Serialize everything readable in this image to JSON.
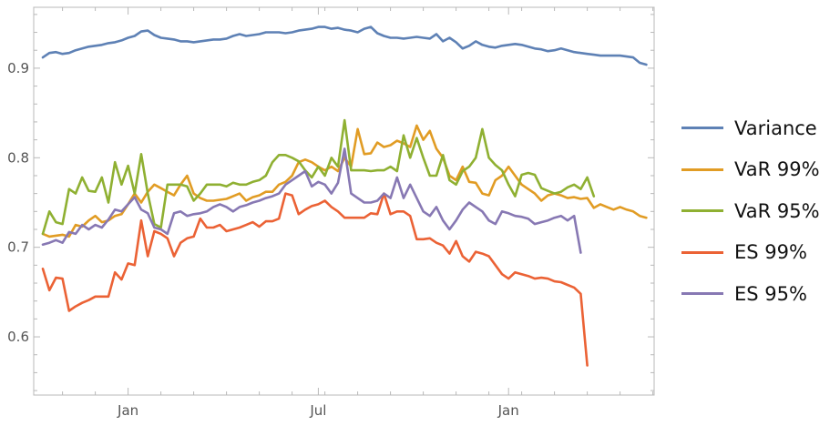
{
  "chart_data": {
    "type": "line",
    "title": "",
    "xlabel": "",
    "ylabel": "",
    "x_tick_labels": [
      "Jan",
      "Jul",
      "Jan"
    ],
    "y_ticks": [
      0.6,
      0.7,
      0.8,
      0.9
    ],
    "y_tick_labels": [
      "0.6",
      "0.7",
      "0.8",
      "0.9"
    ],
    "ylim": [
      0.535,
      0.968
    ],
    "grid": false,
    "legend_position": "right",
    "x_tick_index": [
      13,
      42,
      71
    ],
    "series": [
      {
        "name": "Variance",
        "color": "#5E81B5",
        "values": [
          0.912,
          0.917,
          0.918,
          0.916,
          0.917,
          0.92,
          0.922,
          0.924,
          0.925,
          0.926,
          0.928,
          0.929,
          0.931,
          0.934,
          0.936,
          0.941,
          0.942,
          0.937,
          0.934,
          0.933,
          0.932,
          0.93,
          0.93,
          0.929,
          0.93,
          0.931,
          0.932,
          0.932,
          0.933,
          0.936,
          0.938,
          0.936,
          0.937,
          0.938,
          0.94,
          0.94,
          0.94,
          0.939,
          0.94,
          0.942,
          0.943,
          0.944,
          0.946,
          0.946,
          0.944,
          0.945,
          0.943,
          0.942,
          0.94,
          0.944,
          0.946,
          0.939,
          0.936,
          0.934,
          0.934,
          0.933,
          0.934,
          0.935,
          0.934,
          0.933,
          0.938,
          0.93,
          0.934,
          0.929,
          0.922,
          0.925,
          0.93,
          0.926,
          0.924,
          0.923,
          0.925,
          0.926,
          0.927,
          0.926,
          0.924,
          0.922,
          0.921,
          0.919,
          0.92,
          0.922,
          0.92,
          0.918,
          0.917,
          0.916,
          0.915,
          0.914,
          0.914,
          0.914,
          0.914,
          0.913,
          0.912,
          0.906,
          0.904
        ]
      },
      {
        "name": "VaR 99%",
        "color": "#E19C24",
        "values": [
          0.715,
          0.712,
          0.713,
          0.714,
          0.712,
          0.725,
          0.723,
          0.73,
          0.735,
          0.728,
          0.73,
          0.735,
          0.737,
          0.748,
          0.76,
          0.75,
          0.762,
          0.77,
          0.766,
          0.762,
          0.758,
          0.77,
          0.78,
          0.76,
          0.755,
          0.752,
          0.752,
          0.753,
          0.754,
          0.757,
          0.76,
          0.752,
          0.756,
          0.758,
          0.762,
          0.762,
          0.77,
          0.773,
          0.78,
          0.795,
          0.798,
          0.795,
          0.79,
          0.786,
          0.79,
          0.785,
          0.8,
          0.79,
          0.832,
          0.804,
          0.805,
          0.817,
          0.812,
          0.814,
          0.819,
          0.816,
          0.812,
          0.836,
          0.82,
          0.83,
          0.81,
          0.8,
          0.78,
          0.775,
          0.79,
          0.773,
          0.772,
          0.76,
          0.758,
          0.775,
          0.78,
          0.79,
          0.78,
          0.77,
          0.765,
          0.76,
          0.752,
          0.758,
          0.76,
          0.758,
          0.755,
          0.756,
          0.754,
          0.755,
          0.744,
          0.748,
          0.745,
          0.742,
          0.745,
          0.742,
          0.74,
          0.735,
          0.733
        ]
      },
      {
        "name": "VaR 95%",
        "color": "#8FB032",
        "values": [
          0.715,
          0.74,
          0.728,
          0.726,
          0.765,
          0.76,
          0.778,
          0.763,
          0.762,
          0.778,
          0.75,
          0.795,
          0.77,
          0.791,
          0.76,
          0.804,
          0.76,
          0.726,
          0.722,
          0.77,
          0.77,
          0.77,
          0.768,
          0.752,
          0.76,
          0.77,
          0.77,
          0.77,
          0.768,
          0.772,
          0.77,
          0.77,
          0.773,
          0.775,
          0.78,
          0.795,
          0.803,
          0.803,
          0.8,
          0.796,
          0.786,
          0.778,
          0.79,
          0.78,
          0.8,
          0.79,
          0.842,
          0.786,
          0.786,
          0.786,
          0.785,
          0.786,
          0.786,
          0.79,
          0.785,
          0.825,
          0.8,
          0.822,
          0.8,
          0.78,
          0.78,
          0.803,
          0.775,
          0.77,
          0.785,
          0.79,
          0.8,
          0.832,
          0.8,
          0.792,
          0.786,
          0.77,
          0.757,
          0.781,
          0.783,
          0.781,
          0.766,
          0.763,
          0.76,
          0.762,
          0.767,
          0.77,
          0.765,
          0.778,
          0.757
        ]
      },
      {
        "name": "ES 99%",
        "color": "#EB6235",
        "values": [
          0.676,
          0.652,
          0.666,
          0.665,
          0.629,
          0.634,
          0.638,
          0.641,
          0.645,
          0.645,
          0.645,
          0.672,
          0.664,
          0.682,
          0.68,
          0.73,
          0.69,
          0.718,
          0.715,
          0.71,
          0.69,
          0.705,
          0.71,
          0.712,
          0.732,
          0.722,
          0.722,
          0.725,
          0.718,
          0.72,
          0.722,
          0.725,
          0.728,
          0.723,
          0.729,
          0.729,
          0.732,
          0.76,
          0.758,
          0.737,
          0.742,
          0.746,
          0.748,
          0.752,
          0.745,
          0.74,
          0.733,
          0.733,
          0.733,
          0.733,
          0.738,
          0.737,
          0.76,
          0.737,
          0.74,
          0.74,
          0.735,
          0.709,
          0.709,
          0.71,
          0.705,
          0.702,
          0.693,
          0.707,
          0.69,
          0.684,
          0.695,
          0.693,
          0.69,
          0.68,
          0.67,
          0.665,
          0.672,
          0.67,
          0.668,
          0.665,
          0.666,
          0.665,
          0.662,
          0.661,
          0.658,
          0.655,
          0.648,
          0.568
        ]
      },
      {
        "name": "ES 95%",
        "color": "#8778B3",
        "values": [
          0.703,
          0.705,
          0.708,
          0.705,
          0.717,
          0.715,
          0.725,
          0.72,
          0.725,
          0.722,
          0.731,
          0.742,
          0.74,
          0.748,
          0.756,
          0.742,
          0.738,
          0.722,
          0.72,
          0.715,
          0.738,
          0.74,
          0.735,
          0.737,
          0.738,
          0.74,
          0.745,
          0.748,
          0.745,
          0.74,
          0.745,
          0.747,
          0.75,
          0.752,
          0.755,
          0.757,
          0.76,
          0.77,
          0.775,
          0.78,
          0.785,
          0.768,
          0.773,
          0.77,
          0.76,
          0.772,
          0.81,
          0.76,
          0.755,
          0.75,
          0.75,
          0.752,
          0.76,
          0.755,
          0.778,
          0.755,
          0.77,
          0.755,
          0.74,
          0.735,
          0.745,
          0.73,
          0.72,
          0.73,
          0.742,
          0.75,
          0.745,
          0.74,
          0.73,
          0.726,
          0.74,
          0.738,
          0.735,
          0.734,
          0.732,
          0.726,
          0.728,
          0.73,
          0.733,
          0.735,
          0.73,
          0.735,
          0.694
        ]
      }
    ]
  }
}
